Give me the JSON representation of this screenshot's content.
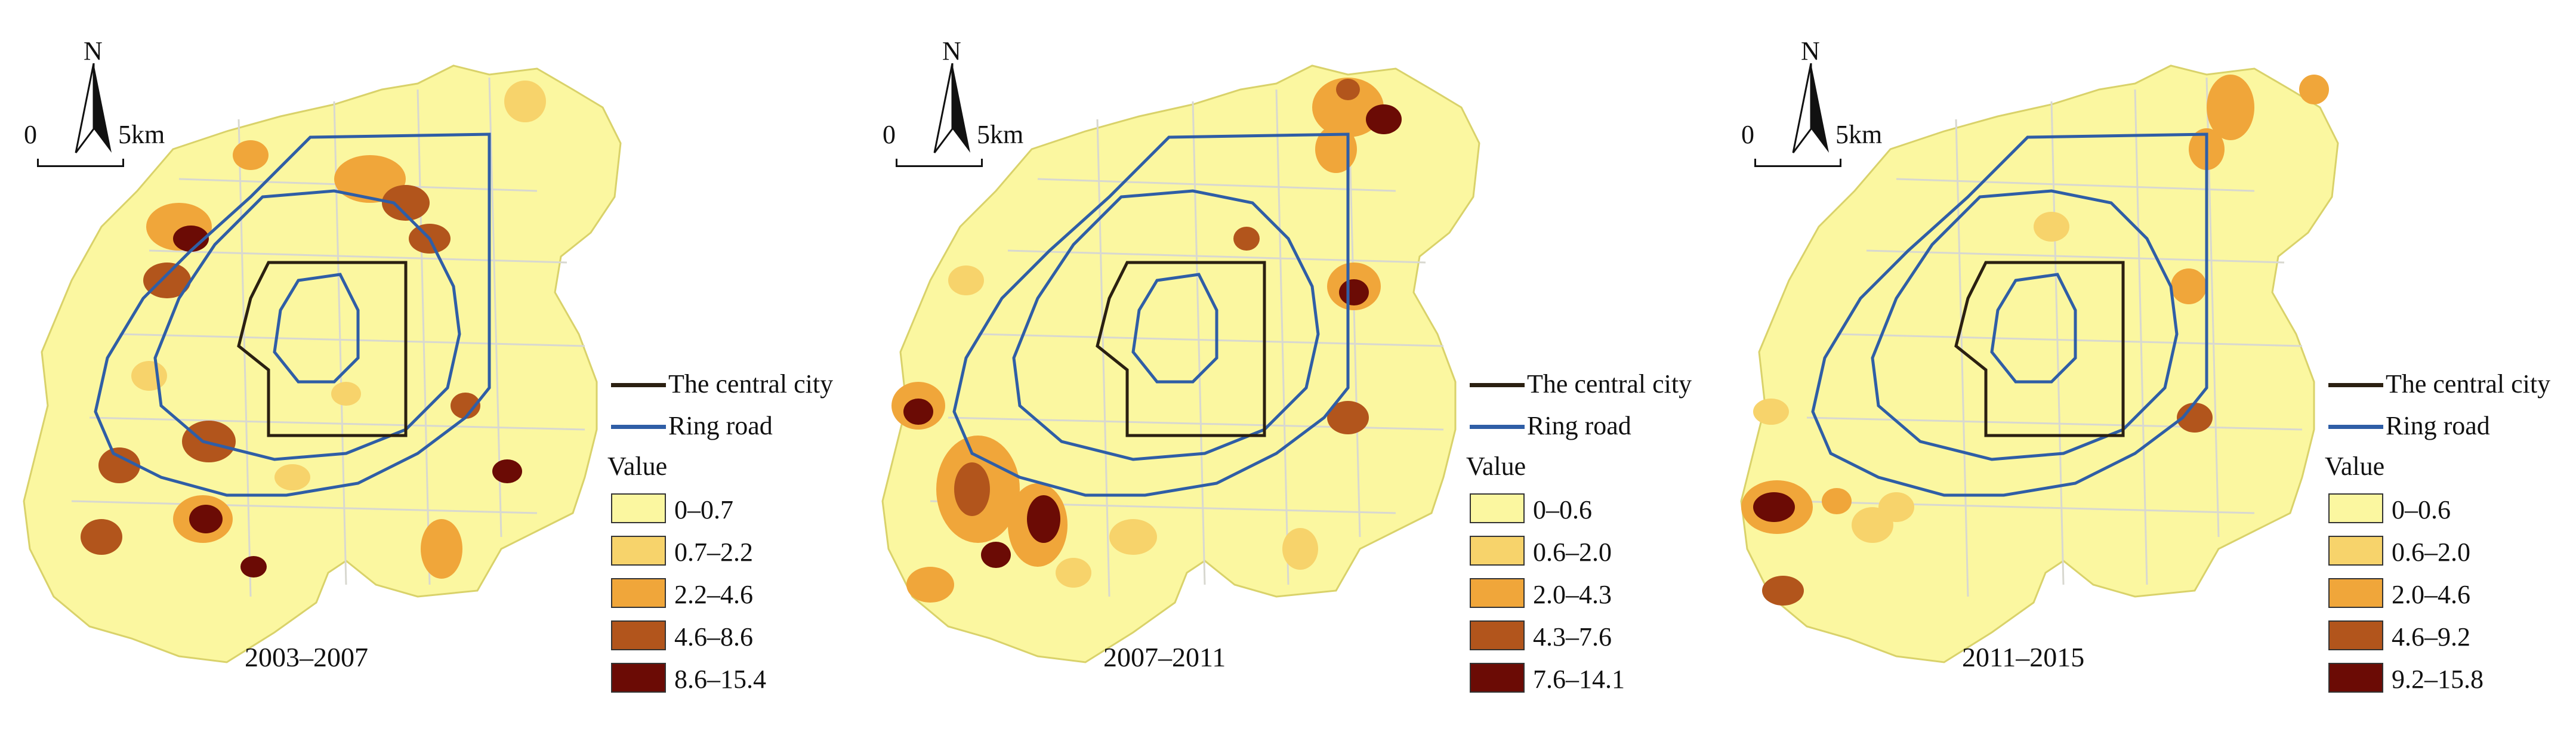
{
  "north_label": "N",
  "scale": {
    "zero": "0",
    "distance": "5km"
  },
  "legend": {
    "central_city_label": "The central city",
    "ring_road_label": "Ring road",
    "value_title": "Value"
  },
  "colors": {
    "central_city_line": "#2b2011",
    "ring_road_line": "#2f5ea6",
    "base_fill": "#fbf7a0",
    "class_colors": [
      "#fbf7a0",
      "#f7d36b",
      "#f0a63a",
      "#b2551c",
      "#6b0b05"
    ]
  },
  "panels": [
    {
      "period": "2003–2007",
      "classes": [
        "0–0.7",
        "0.7–2.2",
        "2.2–4.6",
        "4.6–8.6",
        "8.6–15.4"
      ]
    },
    {
      "period": "2007–2011",
      "classes": [
        "0–0.6",
        "0.6–2.0",
        "2.0–4.3",
        "4.3–7.6",
        "7.6–14.1"
      ]
    },
    {
      "period": "2011–2015",
      "classes": [
        "0–0.6",
        "0.6–2.0",
        "2.0–4.6",
        "4.6–9.2",
        "9.2–15.8"
      ]
    }
  ]
}
